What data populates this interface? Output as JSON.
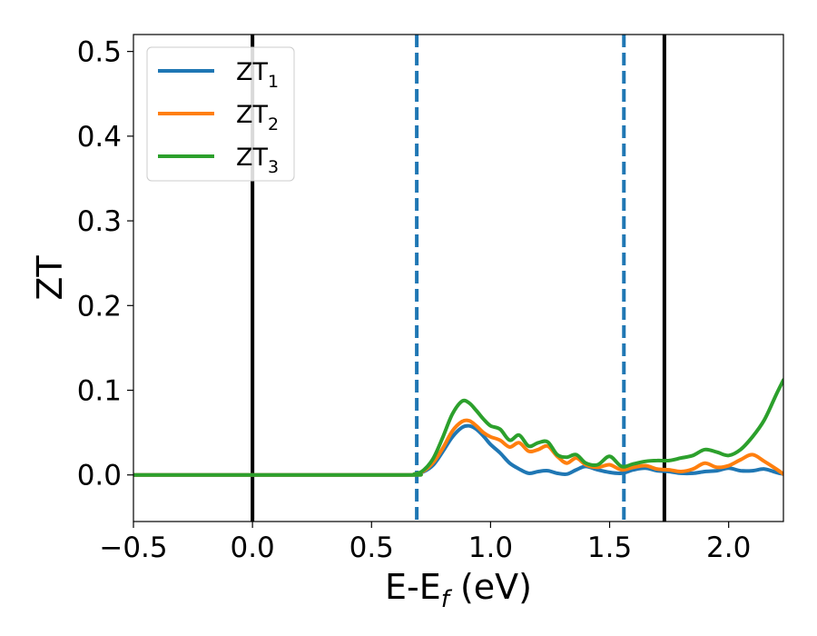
{
  "chart_data": {
    "type": "line",
    "xlabel_main": "E-E",
    "xlabel_sub": "f",
    "xlabel_unit": " (eV)",
    "ylabel": "ZT",
    "xlim": [
      -0.5,
      2.23
    ],
    "ylim": [
      -0.055,
      0.52
    ],
    "grid": false,
    "legend_position": "top-left",
    "x_ticks": [
      {
        "value": -0.5,
        "label": "−0.5"
      },
      {
        "value": 0.0,
        "label": "0.0"
      },
      {
        "value": 0.5,
        "label": "0.5"
      },
      {
        "value": 1.0,
        "label": "1.0"
      },
      {
        "value": 1.5,
        "label": "1.5"
      },
      {
        "value": 2.0,
        "label": "2.0"
      }
    ],
    "y_ticks": [
      {
        "value": 0.0,
        "label": "0.0"
      },
      {
        "value": 0.1,
        "label": "0.1"
      },
      {
        "value": 0.2,
        "label": "0.2"
      },
      {
        "value": 0.3,
        "label": "0.3"
      },
      {
        "value": 0.4,
        "label": "0.4"
      },
      {
        "value": 0.5,
        "label": "0.5"
      }
    ],
    "vlines": [
      {
        "x": 0.0,
        "style": "solid",
        "color": "#000000"
      },
      {
        "x": 0.69,
        "style": "dashed",
        "color": "#1f77b4"
      },
      {
        "x": 1.56,
        "style": "dashed",
        "color": "#1f77b4"
      },
      {
        "x": 1.73,
        "style": "solid",
        "color": "#000000"
      }
    ],
    "series": [
      {
        "name": "ZT",
        "sub": "1",
        "color": "#1f77b4",
        "x": [
          -0.5,
          0.6,
          0.68,
          0.72,
          0.76,
          0.8,
          0.84,
          0.88,
          0.91,
          0.94,
          0.97,
          1.0,
          1.04,
          1.08,
          1.12,
          1.16,
          1.2,
          1.24,
          1.28,
          1.32,
          1.36,
          1.4,
          1.45,
          1.5,
          1.55,
          1.6,
          1.65,
          1.7,
          1.75,
          1.8,
          1.85,
          1.9,
          1.95,
          2.0,
          2.05,
          2.1,
          2.15,
          2.2,
          2.23
        ],
        "y": [
          0.0,
          0.0,
          0.001,
          0.004,
          0.012,
          0.028,
          0.045,
          0.056,
          0.058,
          0.054,
          0.046,
          0.036,
          0.026,
          0.014,
          0.007,
          0.002,
          0.004,
          0.005,
          0.002,
          0.001,
          0.006,
          0.01,
          0.006,
          0.003,
          0.002,
          0.006,
          0.008,
          0.005,
          0.004,
          0.002,
          0.002,
          0.004,
          0.005,
          0.008,
          0.005,
          0.005,
          0.007,
          0.003,
          0.001
        ]
      },
      {
        "name": "ZT",
        "sub": "2",
        "color": "#ff7f0e",
        "x": [
          -0.5,
          0.6,
          0.68,
          0.72,
          0.76,
          0.8,
          0.84,
          0.88,
          0.91,
          0.94,
          0.97,
          1.0,
          1.04,
          1.08,
          1.12,
          1.16,
          1.2,
          1.24,
          1.28,
          1.32,
          1.36,
          1.4,
          1.45,
          1.5,
          1.55,
          1.6,
          1.65,
          1.7,
          1.75,
          1.8,
          1.85,
          1.9,
          1.95,
          2.0,
          2.05,
          2.1,
          2.15,
          2.2,
          2.23
        ],
        "y": [
          0.0,
          0.0,
          0.001,
          0.005,
          0.015,
          0.032,
          0.052,
          0.063,
          0.064,
          0.058,
          0.05,
          0.045,
          0.041,
          0.033,
          0.038,
          0.028,
          0.03,
          0.034,
          0.022,
          0.014,
          0.02,
          0.012,
          0.009,
          0.012,
          0.006,
          0.009,
          0.011,
          0.007,
          0.006,
          0.004,
          0.007,
          0.014,
          0.009,
          0.011,
          0.018,
          0.024,
          0.016,
          0.007,
          0.001
        ]
      },
      {
        "name": "ZT",
        "sub": "3",
        "color": "#2ca02c",
        "x": [
          -0.5,
          0.6,
          0.68,
          0.72,
          0.76,
          0.8,
          0.84,
          0.88,
          0.91,
          0.94,
          0.97,
          1.0,
          1.04,
          1.08,
          1.12,
          1.16,
          1.2,
          1.24,
          1.28,
          1.32,
          1.36,
          1.4,
          1.45,
          1.5,
          1.55,
          1.6,
          1.65,
          1.7,
          1.75,
          1.8,
          1.85,
          1.9,
          1.95,
          2.0,
          2.05,
          2.1,
          2.15,
          2.2,
          2.23
        ],
        "y": [
          0.0,
          0.0,
          0.001,
          0.006,
          0.02,
          0.045,
          0.072,
          0.087,
          0.085,
          0.076,
          0.066,
          0.058,
          0.054,
          0.041,
          0.047,
          0.034,
          0.038,
          0.039,
          0.024,
          0.021,
          0.024,
          0.014,
          0.012,
          0.022,
          0.01,
          0.013,
          0.016,
          0.017,
          0.017,
          0.02,
          0.023,
          0.03,
          0.027,
          0.023,
          0.03,
          0.045,
          0.065,
          0.095,
          0.112
        ]
      }
    ]
  }
}
